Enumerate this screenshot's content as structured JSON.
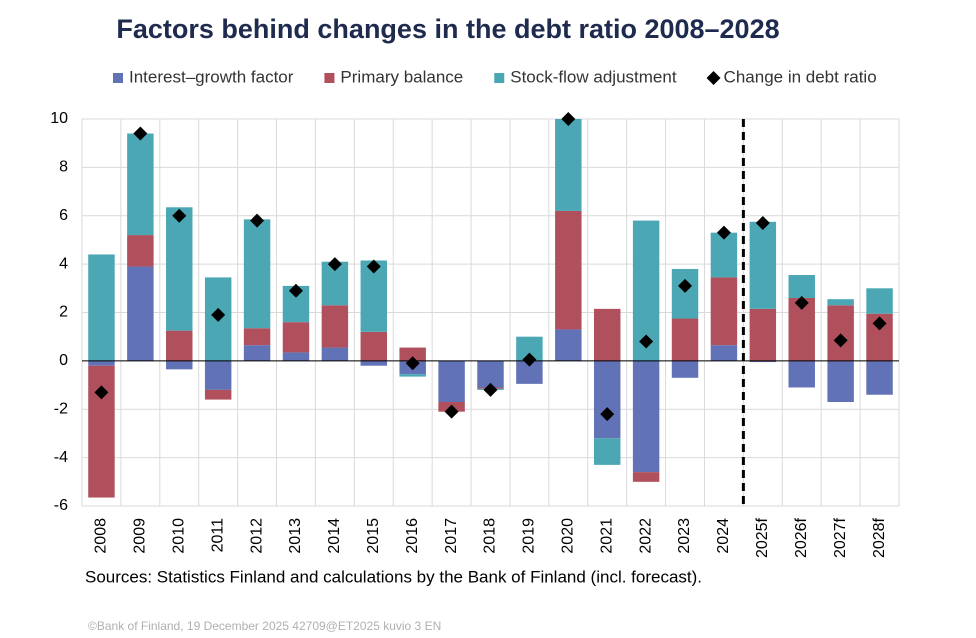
{
  "chart_data": {
    "type": "bar",
    "stacked": true,
    "title": "Factors behind changes in the debt ratio 2008–2028",
    "categories": [
      "2008",
      "2009",
      "2010",
      "2011",
      "2012",
      "2013",
      "2014",
      "2015",
      "2016",
      "2017",
      "2018",
      "2019",
      "2020",
      "2021",
      "2022",
      "2023",
      "2024",
      "2025f",
      "2026f",
      "2027f",
      "2028f"
    ],
    "series": [
      {
        "name": "Interest–growth factor",
        "color": "#6272b6",
        "values": [
          -0.2,
          3.9,
          -0.35,
          -1.2,
          0.65,
          0.35,
          0.55,
          -0.2,
          -0.55,
          -1.7,
          -1.1,
          -0.95,
          1.3,
          -3.2,
          -4.6,
          -0.7,
          0.65,
          -0.05,
          -1.1,
          -1.7,
          -1.4
        ]
      },
      {
        "name": "Primary balance",
        "color": "#b0505c",
        "values": [
          -5.45,
          1.3,
          1.25,
          -0.4,
          0.7,
          1.25,
          1.75,
          1.2,
          0.55,
          -0.4,
          -0.05,
          0,
          4.9,
          2.15,
          -0.4,
          1.75,
          2.8,
          2.15,
          2.6,
          2.3,
          1.95
        ]
      },
      {
        "name": "Stock-flow adjustment",
        "color": "#4aa7b3",
        "values": [
          4.4,
          4.2,
          5.1,
          3.45,
          4.5,
          1.5,
          1.8,
          2.95,
          -0.1,
          0,
          -0.05,
          1.0,
          3.8,
          -1.1,
          5.8,
          2.05,
          1.85,
          3.6,
          0.95,
          0.25,
          1.05
        ]
      },
      {
        "name": "Change in debt ratio",
        "color": "#000000",
        "type": "scatter",
        "marker": "diamond",
        "values": [
          -1.3,
          9.4,
          6.0,
          1.9,
          5.8,
          2.9,
          4.0,
          3.9,
          -0.1,
          -2.1,
          -1.2,
          0.05,
          10.0,
          -2.2,
          0.8,
          3.1,
          5.3,
          5.7,
          2.4,
          0.85,
          1.55
        ]
      }
    ],
    "ylim": [
      -6,
      10
    ],
    "yticks": [
      -6,
      -4,
      -2,
      0,
      2,
      4,
      6,
      8,
      10
    ],
    "grid": true,
    "legend": "top",
    "source": "Sources: Statistics Finland and calculations by the Bank of Finland (incl. forecast).",
    "footer": "©Bank of Finland, 19 December 2025 42709@ET2025   kuvio 3 EN"
  }
}
